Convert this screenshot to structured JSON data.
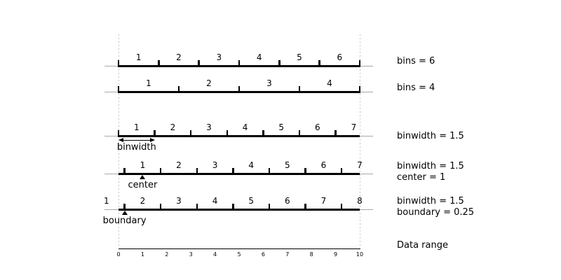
{
  "diagram": {
    "title_hint": "histogram binning options",
    "colors": {
      "ink": "#000000",
      "baseline": "#a8a8a8",
      "guide": "#c6c6c6"
    },
    "x_domain": [
      0,
      10
    ],
    "rows": [
      {
        "name": "bins-6",
        "right_label": [
          "bins = 6"
        ],
        "edges": [
          0,
          1.667,
          3.333,
          5,
          6.667,
          8.333,
          10
        ],
        "bin_labels": [
          {
            "t": "1",
            "x": 0.833
          },
          {
            "t": "2",
            "x": 2.5
          },
          {
            "t": "3",
            "x": 4.167
          },
          {
            "t": "4",
            "x": 5.833
          },
          {
            "t": "5",
            "x": 7.5
          },
          {
            "t": "6",
            "x": 9.167
          }
        ]
      },
      {
        "name": "bins-4",
        "right_label": [
          "bins = 4"
        ],
        "edges": [
          0,
          2.5,
          5,
          7.5,
          10
        ],
        "bin_labels": [
          {
            "t": "1",
            "x": 1.25
          },
          {
            "t": "2",
            "x": 3.75
          },
          {
            "t": "3",
            "x": 6.25
          },
          {
            "t": "4",
            "x": 8.75
          }
        ]
      },
      {
        "name": "binwidth-1-5",
        "right_label": [
          "binwidth = 1.5"
        ],
        "edges": [
          0,
          1.5,
          3,
          4.5,
          6,
          7.5,
          9
        ],
        "bin_labels": [
          {
            "t": "1",
            "x": 0.75
          },
          {
            "t": "2",
            "x": 2.25
          },
          {
            "t": "3",
            "x": 3.75
          },
          {
            "t": "4",
            "x": 5.25
          },
          {
            "t": "5",
            "x": 6.75
          },
          {
            "t": "6",
            "x": 8.25
          },
          {
            "t": "7",
            "x": 9.75
          }
        ],
        "annotation": {
          "type": "span-arrow",
          "from": 0,
          "to": 1.5,
          "text": "binwidth"
        }
      },
      {
        "name": "binwidth-center",
        "right_label": [
          "binwidth = 1.5",
          "center = 1"
        ],
        "edges": [
          0.25,
          1.75,
          3.25,
          4.75,
          6.25,
          7.75,
          9.25
        ],
        "bin_labels": [
          {
            "t": "1",
            "x": 1
          },
          {
            "t": "2",
            "x": 2.5
          },
          {
            "t": "3",
            "x": 4
          },
          {
            "t": "4",
            "x": 5.5
          },
          {
            "t": "5",
            "x": 7
          },
          {
            "t": "6",
            "x": 8.5
          },
          {
            "t": "7",
            "x": 10
          }
        ],
        "annotation": {
          "type": "point-marker",
          "x": 1,
          "text": "center"
        }
      },
      {
        "name": "binwidth-boundary",
        "right_label": [
          "binwidth = 1.5",
          "boundary = 0.25"
        ],
        "edges": [
          0.25,
          1.75,
          3.25,
          4.75,
          6.25,
          7.75,
          9.25
        ],
        "bin_labels": [
          {
            "t": "1",
            "x": -0.5
          },
          {
            "t": "2",
            "x": 1
          },
          {
            "t": "3",
            "x": 2.5
          },
          {
            "t": "4",
            "x": 4
          },
          {
            "t": "5",
            "x": 5.5
          },
          {
            "t": "6",
            "x": 7
          },
          {
            "t": "7",
            "x": 8.5
          },
          {
            "t": "8",
            "x": 10
          }
        ],
        "annotation": {
          "type": "point-marker",
          "x": 0.25,
          "text": "boundary"
        }
      }
    ],
    "axis": {
      "ticks": [
        "0",
        "1",
        "2",
        "3",
        "4",
        "5",
        "6",
        "7",
        "8",
        "9",
        "10"
      ],
      "label": "Data range"
    }
  }
}
